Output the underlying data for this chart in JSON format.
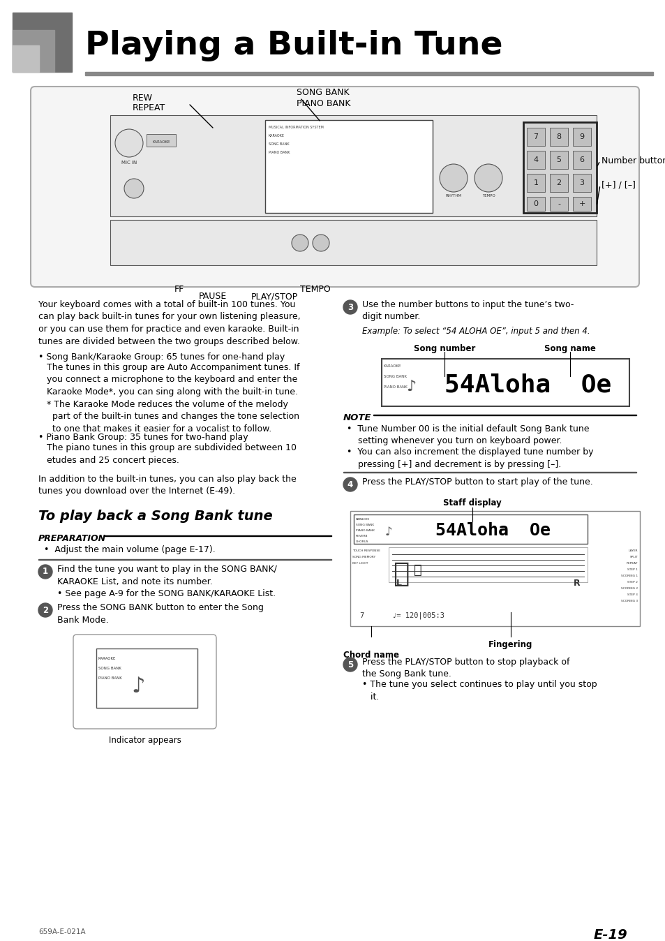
{
  "title": "Playing a Built-in Tune",
  "page_num": "E-19",
  "footer_left": "659A-E-021A",
  "bg_color": "#ffffff",
  "title_color": "#000000",
  "section_heading": "To play back a Song Bank tune",
  "prep_heading": "PREPARATION",
  "prep_bullet": "•  Adjust the main volume (page E-17).",
  "step1_text": "Find the tune you want to play in the SONG BANK/\nKARAOKE List, and note its number.\n• See page A-9 for the SONG BANK/KARAOKE List.",
  "step2_text": "Press the SONG BANK button to enter the Song\nBank Mode.",
  "step3_line1": "Use the number buttons to input the tune’s two-",
  "step3_line2": "digit number.",
  "step3_example": "Example: To select “54 ALOHA OE”, input 5 and then 4.",
  "step4_text": "Press the PLAY/STOP button to start play of the tune.",
  "step5_line1": "Press the PLAY/STOP button to stop playback of",
  "step5_line2": "the Song Bank tune.",
  "step5_bullet": "• The tune you select continues to play until you stop\n   it.",
  "note_title": "NOTE",
  "note_b1": "•  Tune Number 00 is the initial default Song Bank tune\n    setting whenever you turn on keyboard power.",
  "note_b2": "•  You can also increment the displayed tune number by\n    pressing [+] and decrement is by pressing [–].",
  "intro_para1": "Your keyboard comes with a total of built-in 100 tunes. You\ncan play back built-in tunes for your own listening pleasure,\nor you can use them for practice and even karaoke. Built-in\ntunes are divided between the two groups described below.",
  "intro_b1_head": "• Song Bank/Karaoke Group: 65 tunes for one-hand play",
  "intro_b1_body": "   The tunes in this group are Auto Accompaniment tunes. If\n   you connect a microphone to the keyboard and enter the\n   Karaoke Mode*, you can sing along with the built-in tune.\n   * The Karaoke Mode reduces the volume of the melody\n     part of the built-in tunes and changes the tone selection\n     to one that makes it easier for a vocalist to follow.",
  "intro_b2_head": "• Piano Bank Group: 35 tunes for two-hand play",
  "intro_b2_body": "   The piano tunes in this group are subdivided between 10\n   etudes and 25 concert pieces.",
  "intro_para2": "In addition to the built-in tunes, you can also play back the\ntunes you download over the Internet (E-49).",
  "song_number_label": "Song number",
  "song_name_label": "Song name",
  "indicator_label": "Indicator appears",
  "staff_display_label": "Staff display",
  "chord_name_label": "Chord name",
  "fingering_label": "Fingering",
  "display_text": "54Aloha  Oe",
  "rew_label": "REW",
  "repeat_label": "REPEAT",
  "song_bank_label": "SONG BANK",
  "piano_bank_label": "PIANO BANK",
  "num_buttons_label": "Number buttons",
  "plus_minus_label": "[+] / [–]",
  "ff_label": "FF",
  "pause_label": "PAUSE",
  "tempo_label": "TEMPO",
  "playstop_label": "PLAY/STOP"
}
